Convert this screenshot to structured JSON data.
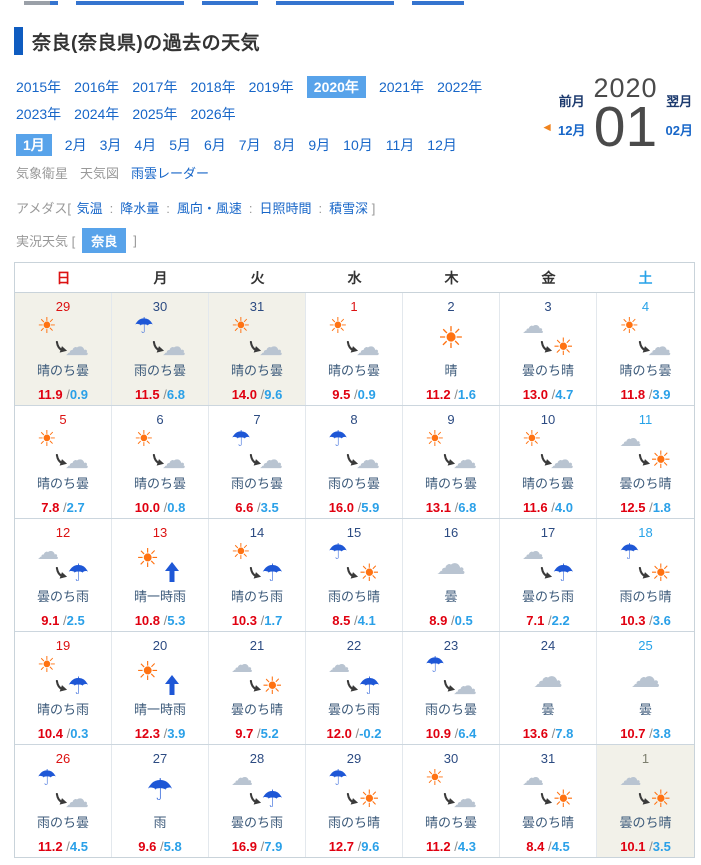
{
  "header": {
    "title": "奈良(奈良県)の過去の天気"
  },
  "nav": {
    "years": [
      {
        "label": "2015年"
      },
      {
        "label": "2016年"
      },
      {
        "label": "2017年"
      },
      {
        "label": "2018年"
      },
      {
        "label": "2019年"
      },
      {
        "label": "2020年",
        "active": true
      },
      {
        "label": "2021年"
      },
      {
        "label": "2022年"
      },
      {
        "label": "2023年"
      },
      {
        "label": "2024年"
      },
      {
        "label": "2025年"
      },
      {
        "label": "2026年"
      }
    ],
    "years_per_row": 8,
    "months": [
      {
        "label": "1月",
        "active": true
      },
      {
        "label": "2月"
      },
      {
        "label": "3月"
      },
      {
        "label": "4月"
      },
      {
        "label": "5月"
      },
      {
        "label": "6月"
      },
      {
        "label": "7月"
      },
      {
        "label": "8月"
      },
      {
        "label": "9月"
      },
      {
        "label": "10月"
      },
      {
        "label": "11月"
      },
      {
        "label": "12月"
      }
    ]
  },
  "switcher": {
    "prev_label": "前月",
    "prev_value": "12月",
    "big_year": "2020",
    "big_month": "01",
    "next_label": "翌月",
    "next_value": "02月",
    "arrow": "◄"
  },
  "map_links": [
    {
      "label": "気象衛星",
      "muted": true
    },
    {
      "label": "天気図",
      "muted": true
    },
    {
      "label": "雨雲レーダー",
      "muted": false
    }
  ],
  "amedas": {
    "prefix": "アメダス[",
    "separator": ":",
    "suffix": "]",
    "items": [
      "気温",
      "降水量",
      "風向・風速",
      "日照時間",
      "積雪深"
    ]
  },
  "current_weather": {
    "prefix": "実況天気 [",
    "chip": "奈良",
    "suffix": "]"
  },
  "calendar": {
    "weekdays": [
      {
        "label": "日",
        "tone": "sun"
      },
      {
        "label": "月",
        "tone": "wk"
      },
      {
        "label": "火",
        "tone": "wk"
      },
      {
        "label": "水",
        "tone": "wk"
      },
      {
        "label": "木",
        "tone": "wk"
      },
      {
        "label": "金",
        "tone": "wk"
      },
      {
        "label": "土",
        "tone": "sat"
      }
    ],
    "weeks": [
      [
        {
          "d": "29",
          "t": "sun",
          "i": "sun_cloud",
          "w": "晴のち曇",
          "h": "11.9",
          "l": "0.9",
          "o": true
        },
        {
          "d": "30",
          "t": "wk",
          "i": "rain_cloud",
          "w": "雨のち曇",
          "h": "11.5",
          "l": "6.8",
          "o": true
        },
        {
          "d": "31",
          "t": "wk",
          "i": "sun_cloud",
          "w": "晴のち曇",
          "h": "14.0",
          "l": "9.6",
          "o": true
        },
        {
          "d": "1",
          "t": "sun",
          "i": "sun_cloud",
          "w": "晴のち曇",
          "h": "9.5",
          "l": "0.9"
        },
        {
          "d": "2",
          "t": "wk",
          "i": "sun",
          "w": "晴",
          "h": "11.2",
          "l": "1.6"
        },
        {
          "d": "3",
          "t": "wk",
          "i": "cloud_sun",
          "w": "曇のち晴",
          "h": "13.0",
          "l": "4.7"
        },
        {
          "d": "4",
          "t": "sat",
          "i": "sun_cloud",
          "w": "晴のち曇",
          "h": "11.8",
          "l": "3.9"
        }
      ],
      [
        {
          "d": "5",
          "t": "sun",
          "i": "sun_cloud",
          "w": "晴のち曇",
          "h": "7.8",
          "l": "2.7"
        },
        {
          "d": "6",
          "t": "wk",
          "i": "sun_cloud",
          "w": "晴のち曇",
          "h": "10.0",
          "l": "0.8"
        },
        {
          "d": "7",
          "t": "wk",
          "i": "rain_cloud",
          "w": "雨のち曇",
          "h": "6.6",
          "l": "3.5"
        },
        {
          "d": "8",
          "t": "wk",
          "i": "rain_cloud",
          "w": "雨のち曇",
          "h": "16.0",
          "l": "5.9"
        },
        {
          "d": "9",
          "t": "wk",
          "i": "sun_cloud",
          "w": "晴のち曇",
          "h": "13.1",
          "l": "6.8"
        },
        {
          "d": "10",
          "t": "wk",
          "i": "sun_cloud",
          "w": "晴のち曇",
          "h": "11.6",
          "l": "4.0"
        },
        {
          "d": "11",
          "t": "sat",
          "i": "cloud_sun",
          "w": "曇のち晴",
          "h": "12.5",
          "l": "1.8"
        }
      ],
      [
        {
          "d": "12",
          "t": "sun",
          "i": "cloud_rain",
          "w": "曇のち雨",
          "h": "9.1",
          "l": "2.5"
        },
        {
          "d": "13",
          "t": "sun",
          "i": "sun_shower",
          "w": "晴一時雨",
          "h": "10.8",
          "l": "5.3"
        },
        {
          "d": "14",
          "t": "wk",
          "i": "sun_rain",
          "w": "晴のち雨",
          "h": "10.3",
          "l": "1.7"
        },
        {
          "d": "15",
          "t": "wk",
          "i": "rain_sun",
          "w": "雨のち晴",
          "h": "8.5",
          "l": "4.1"
        },
        {
          "d": "16",
          "t": "wk",
          "i": "cloud",
          "w": "曇",
          "h": "8.9",
          "l": "0.5"
        },
        {
          "d": "17",
          "t": "wk",
          "i": "cloud_rain",
          "w": "曇のち雨",
          "h": "7.1",
          "l": "2.2"
        },
        {
          "d": "18",
          "t": "sat",
          "i": "rain_sun",
          "w": "雨のち晴",
          "h": "10.3",
          "l": "3.6"
        }
      ],
      [
        {
          "d": "19",
          "t": "sun",
          "i": "sun_rain",
          "w": "晴のち雨",
          "h": "10.4",
          "l": "0.3"
        },
        {
          "d": "20",
          "t": "wk",
          "i": "sun_shower",
          "w": "晴一時雨",
          "h": "12.3",
          "l": "3.9"
        },
        {
          "d": "21",
          "t": "wk",
          "i": "cloud_sun",
          "w": "曇のち晴",
          "h": "9.7",
          "l": "5.2"
        },
        {
          "d": "22",
          "t": "wk",
          "i": "cloud_rain",
          "w": "曇のち雨",
          "h": "12.0",
          "l": "-0.2"
        },
        {
          "d": "23",
          "t": "wk",
          "i": "rain_cloud",
          "w": "雨のち曇",
          "h": "10.9",
          "l": "6.4"
        },
        {
          "d": "24",
          "t": "wk",
          "i": "cloud",
          "w": "曇",
          "h": "13.6",
          "l": "7.8"
        },
        {
          "d": "25",
          "t": "sat",
          "i": "cloud",
          "w": "曇",
          "h": "10.7",
          "l": "3.8"
        }
      ],
      [
        {
          "d": "26",
          "t": "sun",
          "i": "rain_cloud",
          "w": "雨のち曇",
          "h": "11.2",
          "l": "4.5"
        },
        {
          "d": "27",
          "t": "wk",
          "i": "rain",
          "w": "雨",
          "h": "9.6",
          "l": "5.8"
        },
        {
          "d": "28",
          "t": "wk",
          "i": "cloud_rain",
          "w": "曇のち雨",
          "h": "16.9",
          "l": "7.9"
        },
        {
          "d": "29",
          "t": "wk",
          "i": "rain_sun",
          "w": "雨のち晴",
          "h": "12.7",
          "l": "9.6"
        },
        {
          "d": "30",
          "t": "wk",
          "i": "sun_cloud",
          "w": "晴のち曇",
          "h": "11.2",
          "l": "4.3"
        },
        {
          "d": "31",
          "t": "wk",
          "i": "cloud_sun",
          "w": "曇のち晴",
          "h": "8.4",
          "l": "4.5"
        },
        {
          "d": "1",
          "t": "out",
          "i": "cloud_sun",
          "w": "曇のち晴",
          "h": "10.1",
          "l": "3.5",
          "o": true
        }
      ]
    ]
  },
  "colors": {
    "accent_chip_blue": "#58a3ea",
    "link_blue": "#1766c8",
    "title_bar_blue": "#0f5cc0",
    "sunday_red": "#dc1212",
    "saturday_blue": "#27a2e8",
    "weekday_navy": "#2c4b82",
    "high_temp_red": "#e00010",
    "low_temp_blue": "#2aa0e8",
    "sun_orange": "#ff7212",
    "umbrella_blue": "#1e57d6",
    "cloud_gray": "#b9c4d1",
    "out_of_month_bg": "#f2f1e9",
    "prev_next_arrow_orange": "#f0831e"
  }
}
